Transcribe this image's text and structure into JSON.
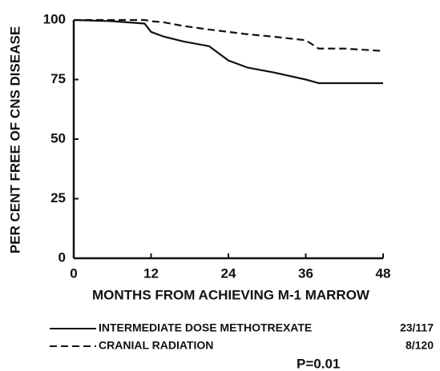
{
  "chart_data": {
    "type": "line",
    "xlabel": "MONTHS FROM ACHIEVING M-1 MARROW",
    "ylabel": "PER CENT FREE OF CNS DISEASE",
    "x": [
      0,
      6,
      11,
      12,
      14,
      17,
      21,
      24,
      27,
      31,
      36,
      38,
      42,
      48
    ],
    "series": [
      {
        "name": "INTERMEDIATE DOSE METHOTREXATE",
        "count": "23/117",
        "color": "#111111",
        "dash": "solid",
        "values": [
          100,
          99.5,
          98.5,
          95,
          93,
          91,
          89,
          83,
          80,
          78,
          75,
          73.5,
          73.5,
          73.5
        ]
      },
      {
        "name": "CRANIAL RADIATION",
        "count": "8/120",
        "color": "#111111",
        "dash": "dashed",
        "values": [
          100,
          100,
          100,
          99.5,
          99,
          97.5,
          96,
          95,
          94,
          93,
          91.5,
          88,
          88,
          87
        ]
      }
    ],
    "annotation": "P=0.01",
    "xlim": [
      0,
      48
    ],
    "xticks": [
      0,
      12,
      24,
      36,
      48
    ],
    "ylim": [
      0,
      100
    ],
    "yticks": [
      0,
      25,
      50,
      75,
      100
    ],
    "grid": false
  }
}
